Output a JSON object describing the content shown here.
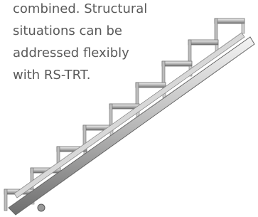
{
  "text": {
    "lines": [
      "combined. Structural",
      "situations can be",
      "addressed flexibly",
      "with RS-TRT."
    ]
  }
}
